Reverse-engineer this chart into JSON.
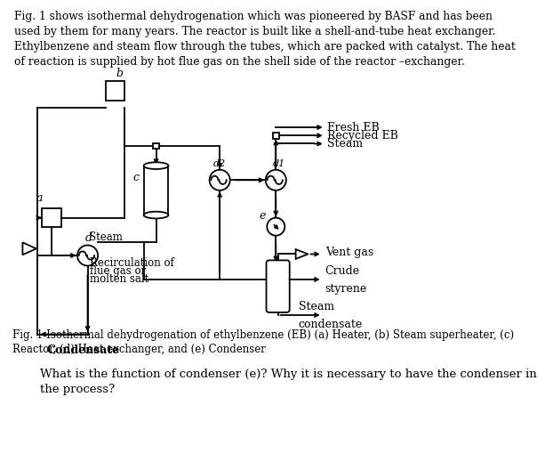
{
  "title_text": "Fig. 1 shows isothermal dehydrogenation which was pioneered by BASF and has been\nused by them for many years. The reactor is built like a shell-and-tube heat exchanger.\nEthylbenzene and steam flow through the tubes, which are packed with catalyst. The heat\nof reaction is supplied by hot flue gas on the shell side of the reactor –exchanger.",
  "caption": "Fig. 1 Isothermal dehydrogenation of ethylbenzene (EB) (a) Heater, (b) Steam superheater, (c)\nReactor, (d) Heat exchanger, and (e) Condenser",
  "question": "What is the function of condenser (e)? Why it is necessary to have the condenser in\nthe process?",
  "bg_color": "#ffffff",
  "line_color": "#000000"
}
